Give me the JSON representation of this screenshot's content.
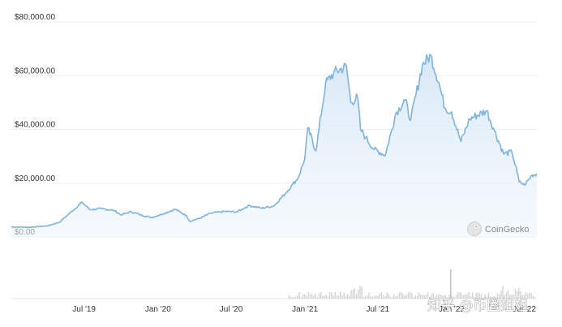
{
  "chart_data": {
    "type": "area",
    "title": "",
    "xlabel": "",
    "ylabel": "",
    "y_ticks": [
      "$80,000.00",
      "$60,000.00",
      "$40,000.00",
      "$20,000.00",
      "$0.00"
    ],
    "y_tick_values": [
      80000,
      60000,
      40000,
      20000,
      0
    ],
    "ylim": [
      0,
      80000
    ],
    "x_ticks": [
      "Jul '19",
      "Jan '20",
      "Jul '20",
      "Jan '21",
      "Jul '21",
      "Jan '22",
      "Jul '22"
    ],
    "x_tick_dates": [
      "2019-07-01",
      "2020-01-01",
      "2020-07-01",
      "2021-01-01",
      "2021-07-01",
      "2022-01-01",
      "2022-07-01"
    ],
    "xlim": [
      "2019-01-01",
      "2022-08-01"
    ],
    "grid": true,
    "legend": "none",
    "series": [
      {
        "color": "#7fb3e0",
        "x": [
          "2019-01-01",
          "2019-02-15",
          "2019-04-01",
          "2019-05-01",
          "2019-05-20",
          "2019-06-26",
          "2019-07-15",
          "2019-08-15",
          "2019-09-15",
          "2019-10-01",
          "2019-10-26",
          "2019-11-15",
          "2019-12-15",
          "2020-01-15",
          "2020-02-13",
          "2020-03-12",
          "2020-03-20",
          "2020-04-15",
          "2020-05-10",
          "2020-06-15",
          "2020-07-15",
          "2020-08-15",
          "2020-09-15",
          "2020-10-15",
          "2020-11-15",
          "2020-12-01",
          "2020-12-15",
          "2020-12-31",
          "2021-01-08",
          "2021-01-28",
          "2021-02-21",
          "2021-03-13",
          "2021-04-14",
          "2021-04-25",
          "2021-05-12",
          "2021-05-19",
          "2021-06-01",
          "2021-06-22",
          "2021-07-20",
          "2021-08-15",
          "2021-09-07",
          "2021-09-21",
          "2021-10-20",
          "2021-11-10",
          "2021-11-30",
          "2021-12-15",
          "2022-01-01",
          "2022-01-24",
          "2022-02-15",
          "2022-03-29",
          "2022-04-15",
          "2022-05-10",
          "2022-05-31",
          "2022-06-13",
          "2022-06-18",
          "2022-07-01",
          "2022-07-20",
          "2022-08-01"
        ],
        "values": [
          3700,
          3600,
          4100,
          5500,
          8000,
          12900,
          10200,
          10500,
          9800,
          8200,
          9400,
          8400,
          7200,
          8700,
          10300,
          7900,
          5800,
          7000,
          8800,
          9500,
          9300,
          11700,
          10700,
          11500,
          16500,
          19500,
          22000,
          29000,
          40500,
          32000,
          57000,
          61000,
          63500,
          50000,
          52000,
          40000,
          37000,
          32500,
          30500,
          46000,
          51000,
          43500,
          64000,
          67500,
          57500,
          48000,
          46500,
          35500,
          44000,
          47000,
          40500,
          31000,
          31500,
          24000,
          20500,
          19300,
          23000,
          23500
        ]
      }
    ],
    "volume_panel": true,
    "watermarks": {
      "logo": "CoinGecko",
      "credit": "知乎 @币圈姐姐"
    }
  }
}
